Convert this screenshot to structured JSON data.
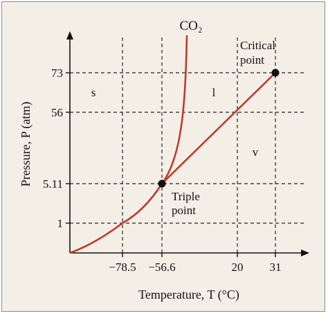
{
  "chart_data": {
    "type": "line",
    "title": "CO₂",
    "xlabel": "Temperature, T (°C)",
    "ylabel": "Pressure, P (atm)",
    "x_ticks": [
      "−78.5",
      "−56.6",
      "20",
      "31"
    ],
    "y_ticks": [
      "1",
      "5.11",
      "56",
      "73"
    ],
    "x_categories": [
      "−78.5",
      "−56.6",
      "20",
      "31"
    ],
    "y_categories": [
      "1",
      "5.11",
      "56",
      "73"
    ],
    "scale": "schematic (non-uniform axes)",
    "grid": "dashed lines at tick values",
    "series": [
      {
        "label_role": "sublimation curve",
        "points": [
          {
            "x": "−78.5",
            "y": "1"
          },
          {
            "x": "−56.6",
            "y": "5.11"
          }
        ]
      },
      {
        "label_role": "vaporization curve",
        "points": [
          {
            "x": "−56.6",
            "y": "5.11"
          },
          {
            "x": "20",
            "y": "56"
          },
          {
            "x": "31",
            "y": "73"
          }
        ]
      },
      {
        "label_role": "melting curve",
        "points": [
          {
            "x": "−56.6",
            "y": "5.11"
          }
        ]
      }
    ],
    "points_of_interest": [
      {
        "name": "Triple point",
        "line1": "Triple",
        "line2": "point",
        "x": "−56.6",
        "y": "5.11"
      },
      {
        "name": "Critical point",
        "line1": "Critical",
        "line2": "point",
        "x": "31",
        "y": "73"
      }
    ],
    "region_labels": [
      "s",
      "l",
      "v"
    ],
    "colors": {
      "curve": "#c0392b",
      "grid": "#222222",
      "axis": "#111111",
      "background": "#f4efe6"
    }
  }
}
